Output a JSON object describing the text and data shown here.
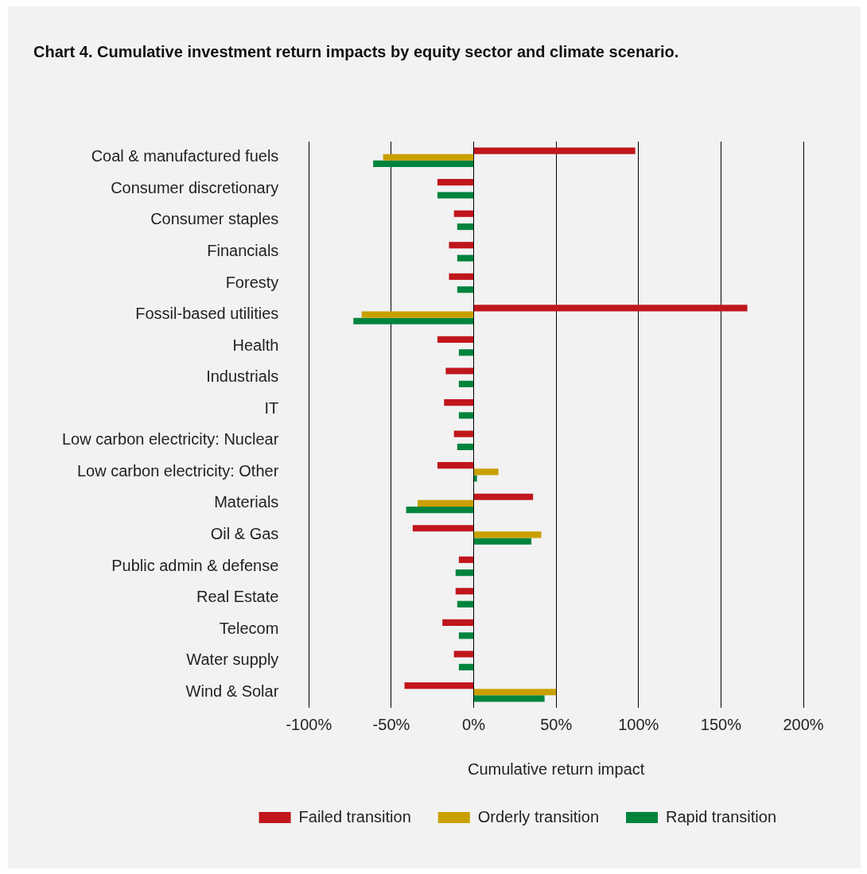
{
  "chart_data": {
    "type": "bar",
    "orientation": "horizontal",
    "title": "Chart 4. Cumulative investment return impacts by equity sector and climate scenario.",
    "xlabel": "Cumulative return impact",
    "categories": [
      "Coal & manufactured fuels",
      "Consumer discretionary",
      "Consumer staples",
      "Financials",
      "Foresty",
      "Fossil-based utilities",
      "Health",
      "Industrials",
      "IT",
      "Low carbon electricity: Nuclear",
      "Low carbon electricity: Other",
      "Materials",
      "Oil & Gas",
      "Public admin & defense",
      "Real Estate",
      "Telecom",
      "Water supply",
      "Wind & Solar"
    ],
    "series": [
      {
        "name": "Failed transition",
        "color": "#c0161c",
        "values": [
          98,
          -22,
          -12,
          -15,
          -15,
          166,
          -22,
          -17,
          -18,
          -12,
          -22,
          36,
          -37,
          -9,
          -11,
          -19,
          -12,
          -42
        ]
      },
      {
        "name": "Orderly transition",
        "color": "#c9a000",
        "values": [
          -55,
          null,
          null,
          null,
          null,
          -68,
          null,
          null,
          null,
          null,
          15,
          -34,
          41,
          null,
          null,
          null,
          null,
          50
        ]
      },
      {
        "name": "Rapid transition",
        "color": "#00843d",
        "values": [
          -61,
          -22,
          -10,
          -10,
          -10,
          -73,
          -9,
          -9,
          -9,
          -10,
          2,
          -41,
          35,
          -11,
          -10,
          -9,
          -9,
          43
        ]
      }
    ],
    "xlim": [
      -100,
      200
    ],
    "xticks": [
      {
        "value": -100,
        "label": "-100%"
      },
      {
        "value": -50,
        "label": "-50%"
      },
      {
        "value": 0,
        "label": "0%"
      },
      {
        "value": 50,
        "label": "50%"
      },
      {
        "value": 100,
        "label": "100%"
      },
      {
        "value": 150,
        "label": "150%"
      },
      {
        "value": 200,
        "label": "200%"
      }
    ],
    "grid": "x",
    "legend": "bottom"
  }
}
